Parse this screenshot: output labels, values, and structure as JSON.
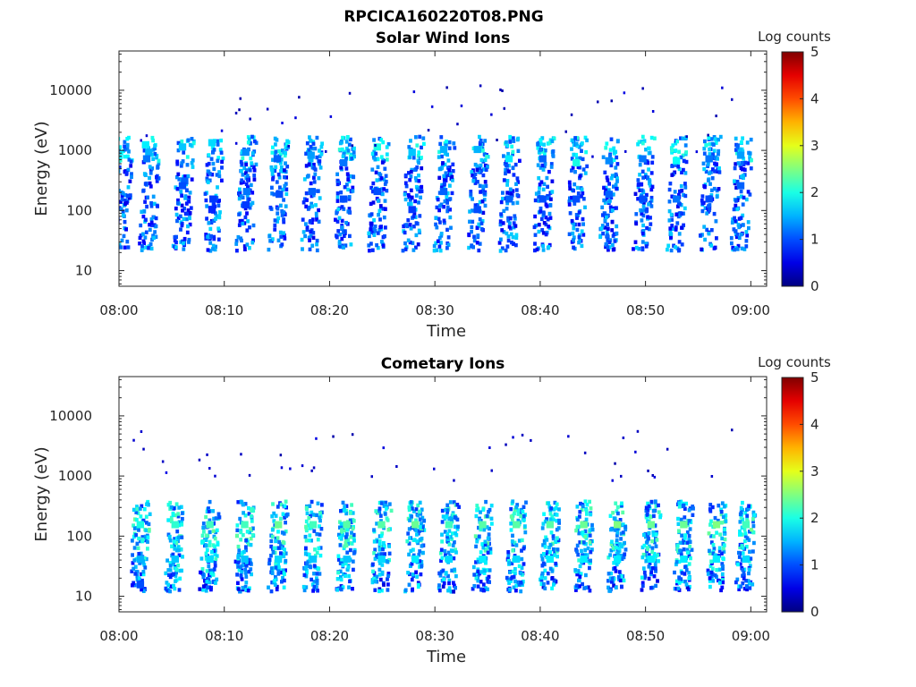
{
  "figure_title": "RPCICA160220T08.PNG",
  "chart_data": [
    {
      "type": "heatmap",
      "title": "Solar Wind Ions",
      "xlabel": "Time",
      "ylabel": "Energy (eV)",
      "x_ticks": [
        "08:00",
        "08:10",
        "08:20",
        "08:30",
        "08:40",
        "08:50",
        "09:00"
      ],
      "y_ticks": [
        "10",
        "100",
        "1000",
        "10000"
      ],
      "y_scale": "log",
      "ylim": [
        5.5,
        45000
      ],
      "colorbar": {
        "label": "Log counts",
        "ticks": [
          "0",
          "1",
          "2",
          "3",
          "4",
          "5"
        ],
        "range": [
          0,
          5
        ],
        "colormap": "jet"
      },
      "sweep_center_minutes": [
        0.2,
        2.8,
        6.0,
        8.8,
        12.0,
        15.0,
        18.2,
        21.3,
        24.5,
        27.8,
        30.8,
        34.0,
        37.0,
        40.2,
        43.4,
        46.5,
        49.7,
        52.9,
        56.0,
        59.0
      ],
      "cells": [
        {
          "t": 2.5,
          "e": 1200,
          "v": 1.8
        },
        {
          "t": 2.8,
          "e": 900,
          "v": 1.5
        },
        {
          "t": 2.6,
          "e": 700,
          "v": 1.2
        },
        {
          "t": 6.0,
          "e": 1100,
          "v": 1.6
        },
        {
          "t": 6.2,
          "e": 300,
          "v": 1.1
        },
        {
          "t": 6.0,
          "e": 250,
          "v": 1.0
        },
        {
          "t": 8.8,
          "e": 1300,
          "v": 1.7
        },
        {
          "t": 8.9,
          "e": 150,
          "v": 0.9
        },
        {
          "t": 8.8,
          "e": 100,
          "v": 0.8
        },
        {
          "t": 12.0,
          "e": 900,
          "v": 1.3
        },
        {
          "t": 12.1,
          "e": 200,
          "v": 1.2
        },
        {
          "t": 12.0,
          "e": 120,
          "v": 0.9
        },
        {
          "t": 15.0,
          "e": 700,
          "v": 1.1
        },
        {
          "t": 15.2,
          "e": 180,
          "v": 1.0
        },
        {
          "t": 18.2,
          "e": 800,
          "v": 1.4
        },
        {
          "t": 18.3,
          "e": 200,
          "v": 1.1
        },
        {
          "t": 21.3,
          "e": 600,
          "v": 1.2
        },
        {
          "t": 21.3,
          "e": 150,
          "v": 1.0
        },
        {
          "t": 24.5,
          "e": 1100,
          "v": 2.0
        },
        {
          "t": 24.5,
          "e": 200,
          "v": 1.0
        },
        {
          "t": 27.8,
          "e": 900,
          "v": 1.6
        },
        {
          "t": 27.8,
          "e": 100,
          "v": 0.9
        },
        {
          "t": 30.8,
          "e": 1000,
          "v": 1.5
        },
        {
          "t": 30.8,
          "e": 200,
          "v": 1.1
        },
        {
          "t": 34.0,
          "e": 1000,
          "v": 1.5
        },
        {
          "t": 34.0,
          "e": 100,
          "v": 1.0
        },
        {
          "t": 37.0,
          "e": 700,
          "v": 1.8
        },
        {
          "t": 37.0,
          "e": 150,
          "v": 1.1
        },
        {
          "t": 40.2,
          "e": 700,
          "v": 1.1
        },
        {
          "t": 40.2,
          "e": 150,
          "v": 1.0
        },
        {
          "t": 43.4,
          "e": 600,
          "v": 2.0
        },
        {
          "t": 43.4,
          "e": 150,
          "v": 1.0
        },
        {
          "t": 46.5,
          "e": 650,
          "v": 1.3
        },
        {
          "t": 46.5,
          "e": 180,
          "v": 1.1
        },
        {
          "t": 49.7,
          "e": 700,
          "v": 1.2
        },
        {
          "t": 49.7,
          "e": 150,
          "v": 1.0
        },
        {
          "t": 52.9,
          "e": 650,
          "v": 1.9
        },
        {
          "t": 52.9,
          "e": 150,
          "v": 1.2
        },
        {
          "t": 56.0,
          "e": 700,
          "v": 1.2
        },
        {
          "t": 56.0,
          "e": 150,
          "v": 1.0
        },
        {
          "t": 59.0,
          "e": 800,
          "v": 1.4
        },
        {
          "t": 59.0,
          "e": 250,
          "v": 1.1
        }
      ]
    },
    {
      "type": "heatmap",
      "title": "Cometary Ions",
      "xlabel": "Time",
      "ylabel": "Energy (eV)",
      "x_ticks": [
        "08:00",
        "08:10",
        "08:20",
        "08:30",
        "08:40",
        "08:50",
        "09:00"
      ],
      "y_ticks": [
        "10",
        "100",
        "1000",
        "10000"
      ],
      "y_scale": "log",
      "ylim": [
        5.5,
        45000
      ],
      "colorbar": {
        "label": "Log counts",
        "ticks": [
          "0",
          "1",
          "2",
          "3",
          "4",
          "5"
        ],
        "range": [
          0,
          5
        ],
        "colormap": "jet"
      },
      "sweep_center_minutes": [
        2.0,
        5.3,
        8.6,
        11.9,
        15.1,
        18.4,
        21.6,
        24.9,
        28.1,
        31.3,
        34.5,
        37.7,
        40.9,
        44.1,
        47.3,
        50.5,
        53.6,
        56.7,
        59.5
      ],
      "cells": [
        {
          "t": 2.0,
          "e": 150,
          "v": 2.0
        },
        {
          "t": 2.0,
          "e": 40,
          "v": 1.5
        },
        {
          "t": 2.0,
          "e": 15,
          "v": 1.0
        },
        {
          "t": 5.3,
          "e": 150,
          "v": 2.1
        },
        {
          "t": 5.3,
          "e": 40,
          "v": 1.6
        },
        {
          "t": 8.6,
          "e": 150,
          "v": 2.2
        },
        {
          "t": 8.6,
          "e": 40,
          "v": 1.7
        },
        {
          "t": 11.9,
          "e": 150,
          "v": 2.2
        },
        {
          "t": 11.9,
          "e": 40,
          "v": 1.6
        },
        {
          "t": 15.1,
          "e": 150,
          "v": 2.4
        },
        {
          "t": 15.1,
          "e": 40,
          "v": 1.7
        },
        {
          "t": 18.4,
          "e": 150,
          "v": 2.2
        },
        {
          "t": 18.4,
          "e": 40,
          "v": 1.6
        },
        {
          "t": 21.6,
          "e": 150,
          "v": 2.3
        },
        {
          "t": 21.6,
          "e": 40,
          "v": 1.6
        },
        {
          "t": 24.9,
          "e": 150,
          "v": 2.3
        },
        {
          "t": 24.9,
          "e": 40,
          "v": 1.7
        },
        {
          "t": 28.1,
          "e": 150,
          "v": 2.4
        },
        {
          "t": 28.1,
          "e": 40,
          "v": 1.8
        },
        {
          "t": 31.3,
          "e": 150,
          "v": 2.2
        },
        {
          "t": 31.3,
          "e": 40,
          "v": 1.7
        },
        {
          "t": 34.5,
          "e": 150,
          "v": 2.3
        },
        {
          "t": 34.5,
          "e": 40,
          "v": 1.8
        },
        {
          "t": 37.7,
          "e": 150,
          "v": 2.3
        },
        {
          "t": 37.7,
          "e": 40,
          "v": 1.7
        },
        {
          "t": 40.9,
          "e": 150,
          "v": 2.3
        },
        {
          "t": 40.9,
          "e": 40,
          "v": 1.8
        },
        {
          "t": 44.1,
          "e": 150,
          "v": 2.4
        },
        {
          "t": 44.1,
          "e": 40,
          "v": 1.8
        },
        {
          "t": 47.3,
          "e": 150,
          "v": 2.5
        },
        {
          "t": 47.3,
          "e": 40,
          "v": 1.8
        },
        {
          "t": 50.5,
          "e": 150,
          "v": 2.4
        },
        {
          "t": 50.5,
          "e": 40,
          "v": 1.8
        },
        {
          "t": 53.6,
          "e": 150,
          "v": 2.4
        },
        {
          "t": 53.6,
          "e": 40,
          "v": 1.8
        },
        {
          "t": 56.7,
          "e": 150,
          "v": 2.5
        },
        {
          "t": 56.7,
          "e": 40,
          "v": 1.8
        },
        {
          "t": 59.5,
          "e": 150,
          "v": 2.2
        },
        {
          "t": 59.5,
          "e": 40,
          "v": 1.7
        }
      ]
    }
  ]
}
